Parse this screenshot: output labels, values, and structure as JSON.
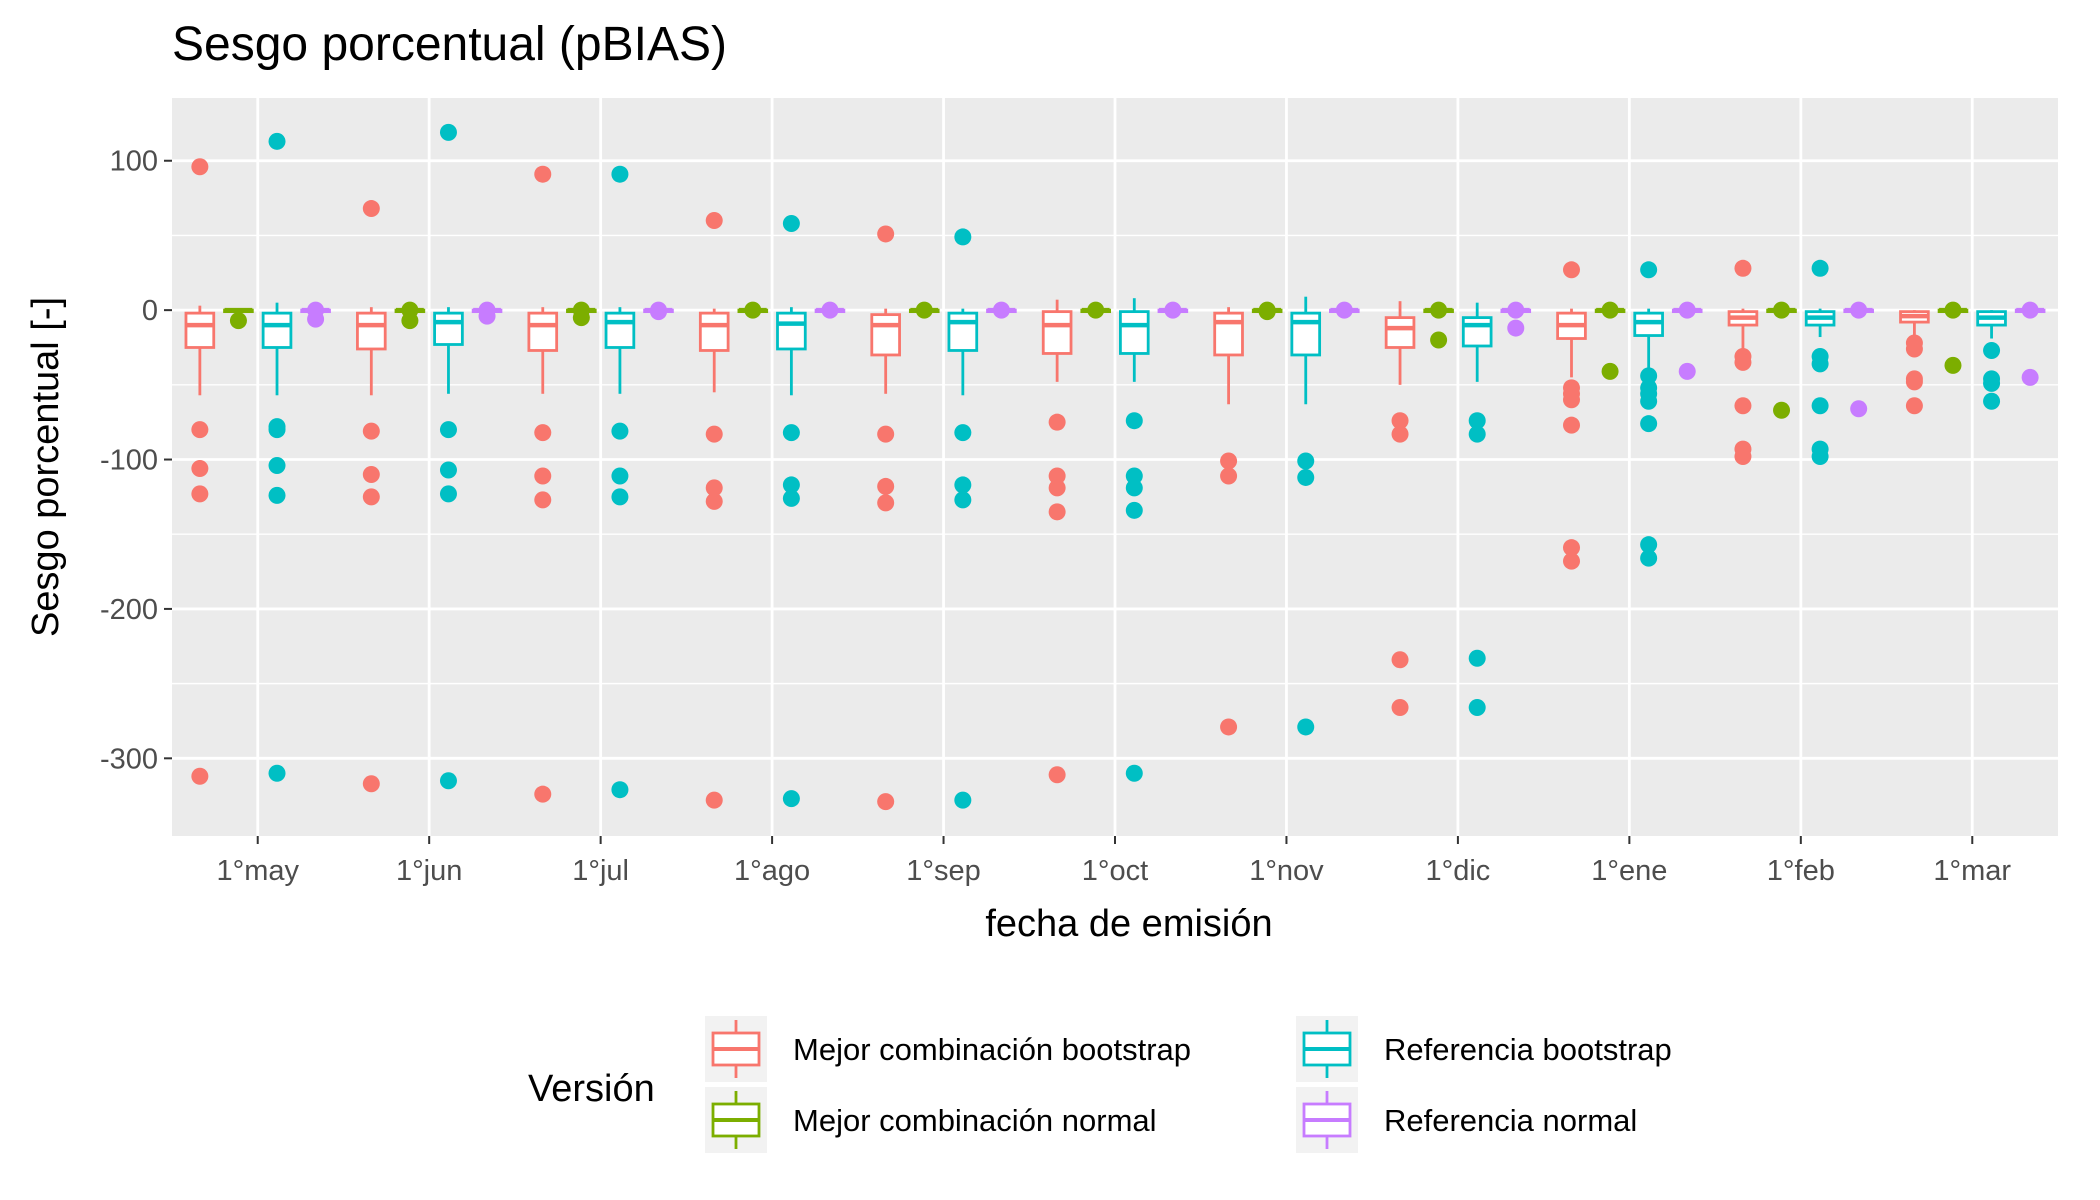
{
  "chart_data": {
    "type": "box",
    "title": "Sesgo porcentual (pBIAS)",
    "xlabel": "fecha de emisión",
    "ylabel": "Sesgo porcentual [-]",
    "ylim": [
      -352,
      142
    ],
    "yticks": [
      100,
      0,
      -100,
      -200,
      -300
    ],
    "ytick_labels": [
      "100",
      "0",
      "-100",
      "-200",
      "-300"
    ],
    "grid": true,
    "legend_position": "bottom",
    "legend_title": "Versión",
    "categories": [
      "1°may",
      "1°jun",
      "1°jul",
      "1°ago",
      "1°sep",
      "1°oct",
      "1°nov",
      "1°dic",
      "1°ene",
      "1°feb",
      "1°mar"
    ],
    "series": [
      {
        "name": "Mejor combinación bootstrap",
        "color": "#F8766D",
        "boxes": [
          {
            "whisker_low": -57,
            "q1": -25,
            "median": -10,
            "q3": -2,
            "whisker_high": 3,
            "outliers": [
              96,
              -80,
              -106,
              -123,
              -312
            ]
          },
          {
            "whisker_low": -57,
            "q1": -26,
            "median": -10,
            "q3": -2,
            "whisker_high": 2,
            "outliers": [
              68,
              -81,
              -110,
              -125,
              -317
            ]
          },
          {
            "whisker_low": -56,
            "q1": -27,
            "median": -10,
            "q3": -2,
            "whisker_high": 2,
            "outliers": [
              91,
              -82,
              -111,
              -127,
              -324
            ]
          },
          {
            "whisker_low": -55,
            "q1": -27,
            "median": -10,
            "q3": -2,
            "whisker_high": 1,
            "outliers": [
              60,
              -83,
              -119,
              -128,
              -328
            ]
          },
          {
            "whisker_low": -56,
            "q1": -30,
            "median": -10,
            "q3": -3,
            "whisker_high": 1,
            "outliers": [
              51,
              -83,
              -118,
              -129,
              -329
            ]
          },
          {
            "whisker_low": -48,
            "q1": -29,
            "median": -10,
            "q3": -1,
            "whisker_high": 7,
            "outliers": [
              -75,
              -111,
              -119,
              -135,
              -311
            ]
          },
          {
            "whisker_low": -63,
            "q1": -30,
            "median": -8,
            "q3": -2,
            "whisker_high": 2,
            "outliers": [
              -101,
              -111,
              -279
            ]
          },
          {
            "whisker_low": -50,
            "q1": -25,
            "median": -12,
            "q3": -5,
            "whisker_high": 6,
            "outliers": [
              -74,
              -83,
              -234,
              -266
            ]
          },
          {
            "whisker_low": -45,
            "q1": -19,
            "median": -10,
            "q3": -2,
            "whisker_high": 1,
            "outliers": [
              27,
              -52,
              -56,
              -60,
              -77,
              -159,
              -168
            ]
          },
          {
            "whisker_low": -27,
            "q1": -10,
            "median": -5,
            "q3": -1,
            "whisker_high": 1,
            "outliers": [
              28,
              -31,
              -35,
              -64,
              -93,
              -98
            ]
          },
          {
            "whisker_low": -18,
            "q1": -8,
            "median": -4,
            "q3": -1,
            "whisker_high": 0,
            "outliers": [
              -22,
              -26,
              -46,
              -48,
              -64
            ]
          }
        ]
      },
      {
        "name": "Mejor combinación normal",
        "color": "#7CAE00",
        "boxes": [
          {
            "whisker_low": -2,
            "q1": -1,
            "median": 0,
            "q3": 0,
            "whisker_high": 0,
            "outliers": [
              -7
            ]
          },
          {
            "whisker_low": -2,
            "q1": -1,
            "median": 0,
            "q3": 0,
            "whisker_high": 0,
            "outliers": [
              -7,
              0
            ]
          },
          {
            "whisker_low": -2,
            "q1": -1,
            "median": 0,
            "q3": 0,
            "whisker_high": 0,
            "outliers": [
              -5,
              0
            ]
          },
          {
            "whisker_low": -2,
            "q1": -1,
            "median": 0,
            "q3": 0,
            "whisker_high": 0,
            "outliers": [
              0
            ]
          },
          {
            "whisker_low": -2,
            "q1": -1,
            "median": 0,
            "q3": 0,
            "whisker_high": 0,
            "outliers": [
              0
            ]
          },
          {
            "whisker_low": -2,
            "q1": -1,
            "median": 0,
            "q3": 0,
            "whisker_high": 0,
            "outliers": [
              0
            ]
          },
          {
            "whisker_low": -2,
            "q1": -1,
            "median": 0,
            "q3": 0,
            "whisker_high": 0,
            "outliers": [
              0,
              -1
            ]
          },
          {
            "whisker_low": -2,
            "q1": -1,
            "median": 0,
            "q3": 0,
            "whisker_high": 0,
            "outliers": [
              0,
              -20
            ]
          },
          {
            "whisker_low": -2,
            "q1": -1,
            "median": 0,
            "q3": 0,
            "whisker_high": 0,
            "outliers": [
              0,
              -41
            ]
          },
          {
            "whisker_low": -2,
            "q1": -1,
            "median": 0,
            "q3": 0,
            "whisker_high": 0,
            "outliers": [
              0,
              -67
            ]
          },
          {
            "whisker_low": -2,
            "q1": -1,
            "median": 0,
            "q3": 0,
            "whisker_high": 0,
            "outliers": [
              0,
              -37
            ]
          }
        ]
      },
      {
        "name": "Referencia bootstrap",
        "color": "#00BFC4",
        "boxes": [
          {
            "whisker_low": -57,
            "q1": -25,
            "median": -10,
            "q3": -2,
            "whisker_high": 5,
            "outliers": [
              113,
              -78,
              -80,
              -104,
              -124,
              -310
            ]
          },
          {
            "whisker_low": -56,
            "q1": -23,
            "median": -8,
            "q3": -2,
            "whisker_high": 2,
            "outliers": [
              119,
              -80,
              -107,
              -123,
              -315
            ]
          },
          {
            "whisker_low": -56,
            "q1": -25,
            "median": -8,
            "q3": -2,
            "whisker_high": 2,
            "outliers": [
              91,
              -81,
              -111,
              -125,
              -321
            ]
          },
          {
            "whisker_low": -57,
            "q1": -26,
            "median": -9,
            "q3": -2,
            "whisker_high": 2,
            "outliers": [
              58,
              -82,
              -117,
              -126,
              -327
            ]
          },
          {
            "whisker_low": -57,
            "q1": -27,
            "median": -8,
            "q3": -2,
            "whisker_high": 1,
            "outliers": [
              49,
              -82,
              -117,
              -127,
              -328
            ]
          },
          {
            "whisker_low": -48,
            "q1": -29,
            "median": -10,
            "q3": -1,
            "whisker_high": 8,
            "outliers": [
              -74,
              -111,
              -119,
              -134,
              -310
            ]
          },
          {
            "whisker_low": -63,
            "q1": -30,
            "median": -8,
            "q3": -2,
            "whisker_high": 9,
            "outliers": [
              -101,
              -112,
              -279
            ]
          },
          {
            "whisker_low": -48,
            "q1": -24,
            "median": -10,
            "q3": -5,
            "whisker_high": 5,
            "outliers": [
              -74,
              -83,
              -233,
              -266
            ]
          },
          {
            "whisker_low": -45,
            "q1": -17,
            "median": -8,
            "q3": -2,
            "whisker_high": 1,
            "outliers": [
              27,
              -44,
              -52,
              -56,
              -61,
              -76,
              -157,
              -166
            ]
          },
          {
            "whisker_low": -18,
            "q1": -10,
            "median": -5,
            "q3": -1,
            "whisker_high": 1,
            "outliers": [
              28,
              -31,
              -36,
              -64,
              -93,
              -98
            ]
          },
          {
            "whisker_low": -19,
            "q1": -10,
            "median": -5,
            "q3": -1,
            "whisker_high": 0,
            "outliers": [
              -27,
              -46,
              -49,
              -61
            ]
          }
        ]
      },
      {
        "name": "Referencia normal",
        "color": "#C77CFF",
        "boxes": [
          {
            "whisker_low": -2,
            "q1": -1,
            "median": 0,
            "q3": 0,
            "whisker_high": 0,
            "outliers": [
              -6,
              0
            ]
          },
          {
            "whisker_low": -2,
            "q1": -1,
            "median": 0,
            "q3": 0,
            "whisker_high": 0,
            "outliers": [
              -4,
              0
            ]
          },
          {
            "whisker_low": -2,
            "q1": -1,
            "median": 0,
            "q3": 0,
            "whisker_high": 0,
            "outliers": [
              -1,
              0
            ]
          },
          {
            "whisker_low": -2,
            "q1": -1,
            "median": 0,
            "q3": 0,
            "whisker_high": 0,
            "outliers": [
              0
            ]
          },
          {
            "whisker_low": -2,
            "q1": -1,
            "median": 0,
            "q3": 0,
            "whisker_high": 0,
            "outliers": [
              0
            ]
          },
          {
            "whisker_low": -2,
            "q1": -1,
            "median": 0,
            "q3": 0,
            "whisker_high": 0,
            "outliers": [
              0
            ]
          },
          {
            "whisker_low": -2,
            "q1": -1,
            "median": 0,
            "q3": 0,
            "whisker_high": 0,
            "outliers": [
              0
            ]
          },
          {
            "whisker_low": -2,
            "q1": -1,
            "median": 0,
            "q3": 0,
            "whisker_high": 0,
            "outliers": [
              0,
              -12
            ]
          },
          {
            "whisker_low": -2,
            "q1": -1,
            "median": 0,
            "q3": 0,
            "whisker_high": 0,
            "outliers": [
              0,
              -41
            ]
          },
          {
            "whisker_low": -2,
            "q1": -1,
            "median": 0,
            "q3": 0,
            "whisker_high": 0,
            "outliers": [
              0,
              -66
            ]
          },
          {
            "whisker_low": -2,
            "q1": -1,
            "median": 0,
            "q3": 0,
            "whisker_high": 0,
            "outliers": [
              0,
              -45
            ]
          }
        ]
      }
    ],
    "colors": {
      "panel_background": "#EBEBEB",
      "grid_line": "#FFFFFF",
      "legend_key_background": "#F2F2F2"
    }
  }
}
